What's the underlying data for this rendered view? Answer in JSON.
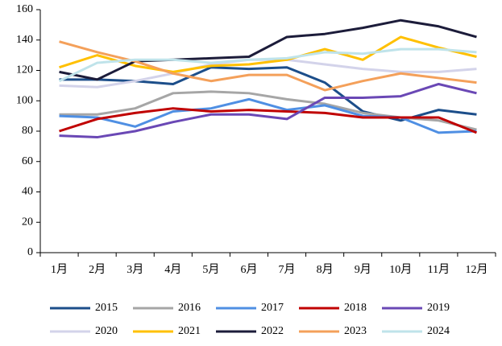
{
  "chart_data": {
    "type": "line",
    "categories": [
      "1月",
      "2月",
      "3月",
      "4月",
      "5月",
      "6月",
      "7月",
      "8月",
      "9月",
      "10月",
      "11月",
      "12月"
    ],
    "series": [
      {
        "name": "2015",
        "color": "#1c4e8a",
        "values": [
          114,
          114,
          113,
          111,
          122,
          121,
          122,
          112,
          93,
          87,
          94,
          91
        ]
      },
      {
        "name": "2016",
        "color": "#a6a6a6",
        "values": [
          91,
          91,
          95,
          105,
          106,
          105,
          101,
          98,
          92,
          89,
          87,
          81
        ]
      },
      {
        "name": "2017",
        "color": "#4f8fe3",
        "values": [
          90,
          89,
          83,
          93,
          95,
          101,
          94,
          97,
          90,
          89,
          79,
          80
        ]
      },
      {
        "name": "2018",
        "color": "#c00000",
        "values": [
          80,
          88,
          92,
          95,
          93,
          94,
          93,
          92,
          89,
          89,
          89,
          79
        ]
      },
      {
        "name": "2019",
        "color": "#6a48b5",
        "values": [
          77,
          76,
          80,
          86,
          91,
          91,
          88,
          102,
          102,
          103,
          111,
          105
        ]
      },
      {
        "name": "2020",
        "color": "#d3d3ea",
        "values": [
          110,
          109,
          113,
          118,
          124,
          127,
          127,
          124,
          121,
          119,
          119,
          121
        ]
      },
      {
        "name": "2021",
        "color": "#ffc000",
        "values": [
          122,
          130,
          123,
          119,
          123,
          124,
          127,
          134,
          127,
          142,
          135,
          129
        ]
      },
      {
        "name": "2022",
        "color": "#1c1c3a",
        "values": [
          119,
          114,
          126,
          127,
          128,
          129,
          142,
          144,
          148,
          153,
          149,
          142
        ]
      },
      {
        "name": "2023",
        "color": "#f4a05a",
        "values": [
          139,
          132,
          126,
          118,
          113,
          117,
          117,
          107,
          113,
          118,
          115,
          112
        ]
      },
      {
        "name": "2024",
        "color": "#bfe3ea",
        "values": [
          113,
          125,
          127,
          127,
          125,
          127,
          128,
          132,
          131,
          134,
          134,
          132
        ]
      }
    ],
    "ylim": [
      0,
      160
    ],
    "yticks": [
      0,
      20,
      40,
      60,
      80,
      100,
      120,
      140,
      160
    ],
    "grid": false,
    "legend": "bottom"
  }
}
